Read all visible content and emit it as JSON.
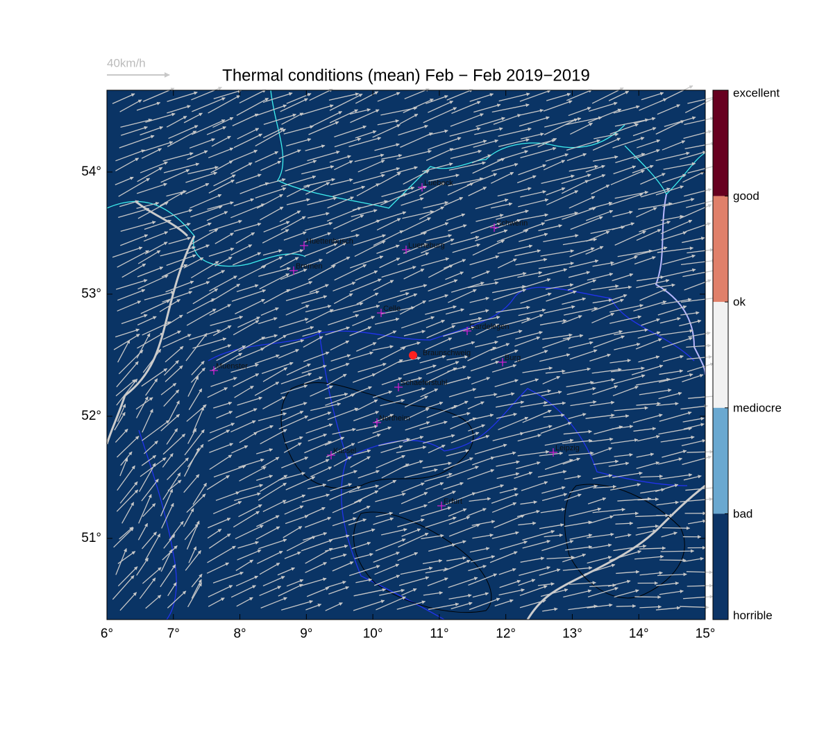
{
  "title": "Thermal conditions (mean) Feb − Feb  2019−2019",
  "scale_label": "40km/h",
  "xlim": [
    6,
    15
  ],
  "ylim": [
    50.335,
    54.67
  ],
  "xticks": [
    {
      "value": 6,
      "label": "6°"
    },
    {
      "value": 7,
      "label": "7°"
    },
    {
      "value": 8,
      "label": "8°"
    },
    {
      "value": 9,
      "label": "9°"
    },
    {
      "value": 10,
      "label": "10°"
    },
    {
      "value": 11,
      "label": "11°"
    },
    {
      "value": 12,
      "label": "12°"
    },
    {
      "value": 13,
      "label": "13°"
    },
    {
      "value": 14,
      "label": "14°"
    },
    {
      "value": 15,
      "label": "15°"
    }
  ],
  "yticks": [
    {
      "value": 51,
      "label": "51°"
    },
    {
      "value": 52,
      "label": "52°"
    },
    {
      "value": 53,
      "label": "53°"
    },
    {
      "value": 54,
      "label": "54°"
    }
  ],
  "cities": [
    "Luebeck",
    "Schwerin",
    "Huettenbusch",
    "Lueneburg",
    "Bremen",
    "Celle",
    "Gardelegen",
    "Braunschweig",
    "Burg",
    "Muenster",
    "Schaeferstuhl",
    "Northeim",
    "Kassel",
    "Leipzig",
    "Erfurt"
  ],
  "colorbar": {
    "labels": [
      "excellent",
      "good",
      "ok",
      "mediocre",
      "bad",
      "horrible"
    ],
    "colors": [
      "#67001f",
      "#e0806a",
      "#f2f2f2",
      "#6aa8d0",
      "#0c3466"
    ]
  }
}
